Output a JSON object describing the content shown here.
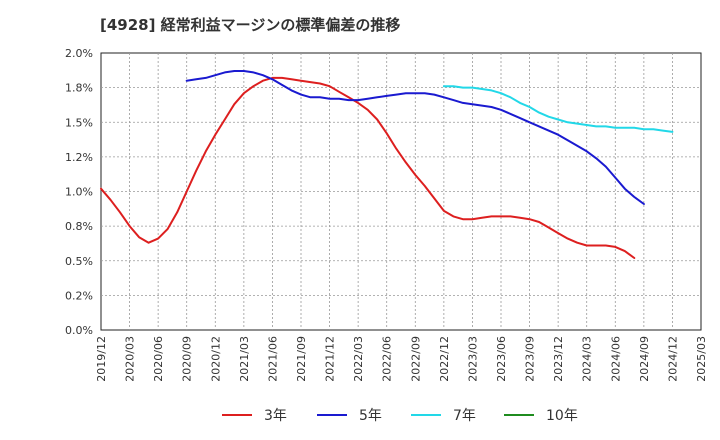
{
  "chart_data": {
    "type": "line",
    "title": "[4928]  経常利益マージンの標準偏差の推移",
    "xlabel": "",
    "ylabel": "",
    "x_ticks": [
      "2019/12",
      "2020/03",
      "2020/06",
      "2020/09",
      "2020/12",
      "2021/03",
      "2021/06",
      "2021/09",
      "2021/12",
      "2022/03",
      "2022/06",
      "2022/09",
      "2022/12",
      "2023/03",
      "2023/06",
      "2023/09",
      "2023/12",
      "2024/03",
      "2024/06",
      "2024/09",
      "2024/12",
      "2025/03"
    ],
    "y_ticks": [
      "0.0%",
      "0.2%",
      "0.5%",
      "0.8%",
      "1.0%",
      "1.2%",
      "1.5%",
      "1.8%",
      "2.0%"
    ],
    "ylim": [
      0,
      2.0
    ],
    "grid": true,
    "legend_position": "bottom",
    "series": [
      {
        "name": "3年",
        "color": "#dd1f1f",
        "points": [
          [
            "2019-12",
            1.02
          ],
          [
            "2020-01",
            0.94
          ],
          [
            "2020-02",
            0.85
          ],
          [
            "2020-03",
            0.75
          ],
          [
            "2020-04",
            0.67
          ],
          [
            "2020-05",
            0.63
          ],
          [
            "2020-06",
            0.66
          ],
          [
            "2020-07",
            0.73
          ],
          [
            "2020-08",
            0.85
          ],
          [
            "2020-09",
            1.0
          ],
          [
            "2020-10",
            1.15
          ],
          [
            "2020-11",
            1.29
          ],
          [
            "2020-12",
            1.41
          ],
          [
            "2021-01",
            1.52
          ],
          [
            "2021-02",
            1.63
          ],
          [
            "2021-03",
            1.71
          ],
          [
            "2021-04",
            1.76
          ],
          [
            "2021-05",
            1.8
          ],
          [
            "2021-06",
            1.82
          ],
          [
            "2021-07",
            1.82
          ],
          [
            "2021-08",
            1.81
          ],
          [
            "2021-09",
            1.8
          ],
          [
            "2021-10",
            1.79
          ],
          [
            "2021-11",
            1.78
          ],
          [
            "2021-12",
            1.76
          ],
          [
            "2022-01",
            1.72
          ],
          [
            "2022-02",
            1.68
          ],
          [
            "2022-03",
            1.64
          ],
          [
            "2022-04",
            1.59
          ],
          [
            "2022-05",
            1.52
          ],
          [
            "2022-06",
            1.42
          ],
          [
            "2022-07",
            1.31
          ],
          [
            "2022-08",
            1.21
          ],
          [
            "2022-09",
            1.12
          ],
          [
            "2022-10",
            1.04
          ],
          [
            "2022-11",
            0.95
          ],
          [
            "2022-12",
            0.86
          ],
          [
            "2023-01",
            0.82
          ],
          [
            "2023-02",
            0.8
          ],
          [
            "2023-03",
            0.8
          ],
          [
            "2023-04",
            0.81
          ],
          [
            "2023-05",
            0.82
          ],
          [
            "2023-06",
            0.82
          ],
          [
            "2023-07",
            0.82
          ],
          [
            "2023-08",
            0.81
          ],
          [
            "2023-09",
            0.8
          ],
          [
            "2023-10",
            0.78
          ],
          [
            "2023-11",
            0.74
          ],
          [
            "2023-12",
            0.7
          ],
          [
            "2024-01",
            0.66
          ],
          [
            "2024-02",
            0.63
          ],
          [
            "2024-03",
            0.61
          ],
          [
            "2024-04",
            0.61
          ],
          [
            "2024-05",
            0.61
          ],
          [
            "2024-06",
            0.6
          ],
          [
            "2024-07",
            0.57
          ],
          [
            "2024-08",
            0.52
          ]
        ]
      },
      {
        "name": "5年",
        "color": "#1a1ad0",
        "points": [
          [
            "2020-09",
            1.8
          ],
          [
            "2020-10",
            1.81
          ],
          [
            "2020-11",
            1.82
          ],
          [
            "2020-12",
            1.84
          ],
          [
            "2021-01",
            1.86
          ],
          [
            "2021-02",
            1.87
          ],
          [
            "2021-03",
            1.87
          ],
          [
            "2021-04",
            1.86
          ],
          [
            "2021-05",
            1.84
          ],
          [
            "2021-06",
            1.81
          ],
          [
            "2021-07",
            1.77
          ],
          [
            "2021-08",
            1.73
          ],
          [
            "2021-09",
            1.7
          ],
          [
            "2021-10",
            1.68
          ],
          [
            "2021-11",
            1.68
          ],
          [
            "2021-12",
            1.67
          ],
          [
            "2022-01",
            1.67
          ],
          [
            "2022-02",
            1.66
          ],
          [
            "2022-03",
            1.66
          ],
          [
            "2022-04",
            1.67
          ],
          [
            "2022-05",
            1.68
          ],
          [
            "2022-06",
            1.69
          ],
          [
            "2022-07",
            1.7
          ],
          [
            "2022-08",
            1.71
          ],
          [
            "2022-09",
            1.71
          ],
          [
            "2022-10",
            1.71
          ],
          [
            "2022-11",
            1.7
          ],
          [
            "2022-12",
            1.68
          ],
          [
            "2023-01",
            1.66
          ],
          [
            "2023-02",
            1.64
          ],
          [
            "2023-03",
            1.63
          ],
          [
            "2023-04",
            1.62
          ],
          [
            "2023-05",
            1.61
          ],
          [
            "2023-06",
            1.59
          ],
          [
            "2023-07",
            1.56
          ],
          [
            "2023-08",
            1.53
          ],
          [
            "2023-09",
            1.5
          ],
          [
            "2023-10",
            1.47
          ],
          [
            "2023-11",
            1.44
          ],
          [
            "2023-12",
            1.41
          ],
          [
            "2024-01",
            1.37
          ],
          [
            "2024-02",
            1.33
          ],
          [
            "2024-03",
            1.29
          ],
          [
            "2024-04",
            1.24
          ],
          [
            "2024-05",
            1.18
          ],
          [
            "2024-06",
            1.1
          ],
          [
            "2024-07",
            1.02
          ],
          [
            "2024-08",
            0.96
          ],
          [
            "2024-09",
            0.91
          ]
        ]
      },
      {
        "name": "7年",
        "color": "#22d8e8",
        "points": [
          [
            "2022-12",
            1.76
          ],
          [
            "2023-01",
            1.76
          ],
          [
            "2023-02",
            1.75
          ],
          [
            "2023-03",
            1.75
          ],
          [
            "2023-04",
            1.74
          ],
          [
            "2023-05",
            1.73
          ],
          [
            "2023-06",
            1.71
          ],
          [
            "2023-07",
            1.68
          ],
          [
            "2023-08",
            1.64
          ],
          [
            "2023-09",
            1.61
          ],
          [
            "2023-10",
            1.57
          ],
          [
            "2023-11",
            1.54
          ],
          [
            "2023-12",
            1.52
          ],
          [
            "2024-01",
            1.5
          ],
          [
            "2024-02",
            1.49
          ],
          [
            "2024-03",
            1.48
          ],
          [
            "2024-04",
            1.47
          ],
          [
            "2024-05",
            1.47
          ],
          [
            "2024-06",
            1.46
          ],
          [
            "2024-07",
            1.46
          ],
          [
            "2024-08",
            1.46
          ],
          [
            "2024-09",
            1.45
          ],
          [
            "2024-10",
            1.45
          ],
          [
            "2024-11",
            1.44
          ],
          [
            "2024-12",
            1.43
          ]
        ]
      },
      {
        "name": "10年",
        "color": "#1f8c1f",
        "points": []
      }
    ]
  }
}
